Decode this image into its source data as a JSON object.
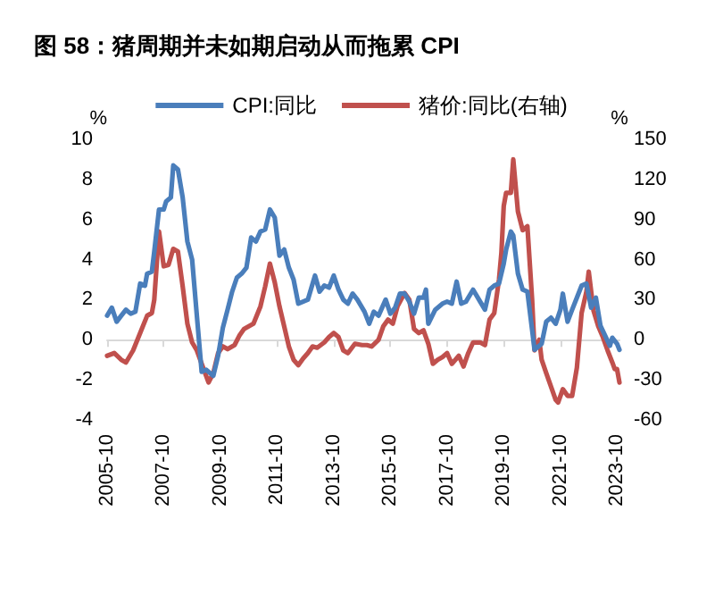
{
  "chart_data": {
    "type": "line",
    "title": "图 58：猪周期并未如期启动从而拖累 CPI",
    "ylabel": "%",
    "y2label": "%",
    "legend": "top",
    "marker": "none",
    "line_style": "solid",
    "xlim": [
      "2005-10",
      "2023-11"
    ],
    "xticks": [
      "2005-10",
      "2007-10",
      "2009-10",
      "2011-10",
      "2013-10",
      "2015-10",
      "2017-10",
      "2019-10",
      "2021-10",
      "2023-10"
    ],
    "ylim": [
      -4,
      10
    ],
    "yticks": [
      -4,
      -2,
      0,
      2,
      4,
      6,
      8,
      10
    ],
    "y2lim": [
      -60,
      150
    ],
    "y2ticks": [
      -60,
      -30,
      0,
      30,
      60,
      90,
      120,
      150
    ],
    "series": [
      {
        "name": "CPI:同比",
        "color": "#4a7ebb",
        "x": [
          "2005-10",
          "2005-12",
          "2006-02",
          "2006-04",
          "2006-06",
          "2006-08",
          "2006-10",
          "2006-12",
          "2007-02",
          "2007-03",
          "2007-05",
          "2007-06",
          "2007-08",
          "2007-10",
          "2007-11",
          "2008-01",
          "2008-02",
          "2008-04",
          "2008-06",
          "2008-08",
          "2008-10",
          "2008-12",
          "2009-02",
          "2009-04",
          "2009-07",
          "2009-09",
          "2009-11",
          "2010-01",
          "2010-03",
          "2010-05",
          "2010-07",
          "2010-09",
          "2010-11",
          "2011-01",
          "2011-03",
          "2011-05",
          "2011-07",
          "2011-09",
          "2011-11",
          "2012-01",
          "2012-03",
          "2012-05",
          "2012-07",
          "2012-09",
          "2012-11",
          "2013-02",
          "2013-04",
          "2013-06",
          "2013-08",
          "2013-10",
          "2013-12",
          "2014-02",
          "2014-04",
          "2014-06",
          "2014-08",
          "2014-11",
          "2015-01",
          "2015-03",
          "2015-05",
          "2015-08",
          "2015-10",
          "2015-12",
          "2016-02",
          "2016-04",
          "2016-06",
          "2016-08",
          "2016-10",
          "2016-12",
          "2017-01",
          "2017-02",
          "2017-05",
          "2017-08",
          "2017-10",
          "2017-12",
          "2018-02",
          "2018-04",
          "2018-06",
          "2018-09",
          "2018-12",
          "2019-02",
          "2019-04",
          "2019-06",
          "2019-08",
          "2019-10",
          "2019-11",
          "2020-01",
          "2020-02",
          "2020-04",
          "2020-06",
          "2020-08",
          "2020-10",
          "2020-11",
          "2021-01",
          "2021-02",
          "2021-04",
          "2021-06",
          "2021-08",
          "2021-10",
          "2021-11",
          "2022-01",
          "2022-03",
          "2022-05",
          "2022-07",
          "2022-09",
          "2022-11",
          "2023-01",
          "2023-03",
          "2023-05",
          "2023-07",
          "2023-08",
          "2023-10",
          "2023-11"
        ],
        "values": [
          1.2,
          1.6,
          0.9,
          1.2,
          1.5,
          1.3,
          1.4,
          2.8,
          2.7,
          3.3,
          3.4,
          4.4,
          6.5,
          6.5,
          6.9,
          7.1,
          8.7,
          8.5,
          7.1,
          4.9,
          4.0,
          1.2,
          -1.6,
          -1.5,
          -1.8,
          -0.8,
          0.6,
          1.5,
          2.4,
          3.1,
          3.3,
          3.6,
          5.1,
          4.9,
          5.4,
          5.5,
          6.5,
          6.1,
          4.2,
          4.5,
          3.6,
          3.0,
          1.8,
          1.9,
          2.0,
          3.2,
          2.4,
          2.7,
          2.6,
          3.2,
          2.5,
          2.0,
          1.8,
          2.3,
          2.0,
          1.4,
          0.8,
          1.4,
          1.2,
          2.0,
          1.3,
          1.6,
          2.3,
          2.3,
          1.9,
          1.3,
          2.1,
          2.1,
          2.5,
          0.8,
          1.5,
          1.8,
          1.9,
          1.8,
          2.9,
          1.8,
          1.9,
          2.5,
          1.9,
          1.5,
          2.5,
          2.7,
          2.8,
          3.8,
          4.5,
          5.4,
          5.2,
          3.3,
          2.5,
          2.4,
          0.5,
          -0.5,
          -0.3,
          -0.2,
          0.9,
          1.1,
          0.8,
          1.5,
          2.3,
          0.9,
          1.5,
          2.1,
          2.7,
          2.8,
          1.6,
          2.1,
          0.7,
          0.2,
          -0.3,
          0.1,
          -0.2,
          -0.5
        ]
      },
      {
        "name": "猪价:同比(右轴)",
        "color": "#c0504d",
        "axis": "y2",
        "x": [
          "2005-10",
          "2006-01",
          "2006-04",
          "2006-06",
          "2006-09",
          "2006-12",
          "2007-03",
          "2007-05",
          "2007-06",
          "2007-08",
          "2007-10",
          "2007-12",
          "2008-02",
          "2008-04",
          "2008-06",
          "2008-08",
          "2008-10",
          "2008-12",
          "2009-02",
          "2009-05",
          "2009-07",
          "2009-09",
          "2009-11",
          "2010-01",
          "2010-04",
          "2010-06",
          "2010-08",
          "2010-10",
          "2010-12",
          "2011-03",
          "2011-05",
          "2011-07",
          "2011-09",
          "2011-11",
          "2012-01",
          "2012-03",
          "2012-05",
          "2012-07",
          "2012-09",
          "2012-11",
          "2013-01",
          "2013-03",
          "2013-06",
          "2013-08",
          "2013-10",
          "2013-12",
          "2014-02",
          "2014-04",
          "2014-07",
          "2014-10",
          "2014-12",
          "2015-02",
          "2015-05",
          "2015-07",
          "2015-09",
          "2015-11",
          "2016-01",
          "2016-04",
          "2016-06",
          "2016-08",
          "2016-10",
          "2016-12",
          "2017-02",
          "2017-04",
          "2017-06",
          "2017-08",
          "2017-10",
          "2017-12",
          "2018-03",
          "2018-05",
          "2018-07",
          "2018-09",
          "2018-12",
          "2019-02",
          "2019-04",
          "2019-06",
          "2019-08",
          "2019-09",
          "2019-10",
          "2019-11",
          "2020-01",
          "2020-02",
          "2020-04",
          "2020-06",
          "2020-08",
          "2020-10",
          "2020-11",
          "2021-01",
          "2021-02",
          "2021-04",
          "2021-06",
          "2021-08",
          "2021-09",
          "2021-11",
          "2022-01",
          "2022-03",
          "2022-05",
          "2022-07",
          "2022-09",
          "2022-10",
          "2022-12",
          "2023-02",
          "2023-04",
          "2023-06",
          "2023-08",
          "2023-09",
          "2023-10",
          "2023-11"
        ],
        "values": [
          -12,
          -10,
          -15,
          -17,
          -8,
          5,
          18,
          20,
          30,
          81,
          55,
          56,
          68,
          66,
          40,
          12,
          -2,
          -8,
          -18,
          -32,
          -25,
          -10,
          -5,
          -7,
          -4,
          3,
          8,
          10,
          12,
          25,
          40,
          57,
          43,
          25,
          10,
          -5,
          -15,
          -19,
          -14,
          -10,
          -5,
          -6,
          -2,
          2,
          5,
          2,
          -8,
          -10,
          -3,
          -4,
          -4,
          -5,
          0,
          10,
          15,
          12,
          25,
          35,
          30,
          8,
          5,
          7,
          -3,
          -18,
          -15,
          -13,
          -10,
          -18,
          -12,
          -20,
          -10,
          -2,
          -2,
          -4,
          15,
          20,
          45,
          65,
          100,
          110,
          110,
          135,
          96,
          82,
          85,
          30,
          -8,
          0,
          -15,
          -25,
          -35,
          -45,
          -47,
          -37,
          -42,
          -42,
          -21,
          20,
          36,
          51,
          22,
          10,
          2,
          -8,
          -17,
          -22,
          -22,
          -32
        ]
      }
    ]
  }
}
